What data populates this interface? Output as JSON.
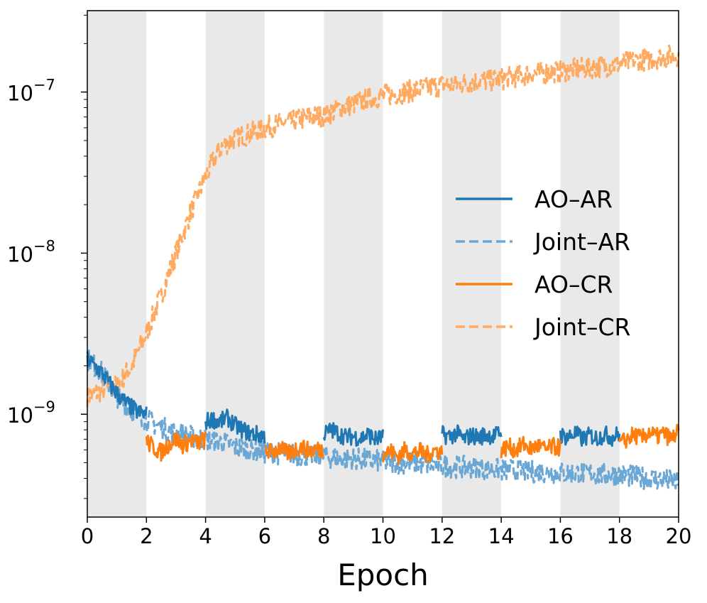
{
  "chart_data": {
    "type": "line",
    "title": "",
    "xlabel": "Epoch",
    "ylabel": "",
    "xlim": [
      0,
      20
    ],
    "ylim": [
      2.3e-10,
      3.2e-07
    ],
    "yscale": "log",
    "xticks": [
      "0",
      "2",
      "4",
      "6",
      "8",
      "10",
      "12",
      "14",
      "16",
      "18",
      "20"
    ],
    "yticks": [
      {
        "value": 1e-09,
        "base": "10",
        "exp": "−9"
      },
      {
        "value": 1e-08,
        "base": "10",
        "exp": "−8"
      },
      {
        "value": 1e-07,
        "base": "10",
        "exp": "−7"
      }
    ],
    "shaded_epoch_ranges": [
      [
        0,
        2
      ],
      [
        4,
        6
      ],
      [
        8,
        10
      ],
      [
        12,
        14
      ],
      [
        16,
        18
      ]
    ],
    "legend_position": "center-right",
    "series": [
      {
        "name": "AO–AR",
        "color": "#1f77b4",
        "style": "solid",
        "active_epoch_ranges": [
          [
            0,
            2
          ],
          [
            4,
            6
          ],
          [
            8,
            10
          ],
          [
            12,
            14
          ],
          [
            16,
            18
          ]
        ],
        "x": [
          0,
          0.25,
          0.5,
          0.75,
          1,
          1.25,
          1.5,
          1.75,
          2,
          4,
          4.25,
          4.5,
          4.75,
          5,
          5.25,
          5.5,
          5.75,
          6,
          8,
          8.25,
          8.5,
          8.75,
          9,
          9.25,
          9.5,
          9.75,
          10,
          12,
          12.25,
          12.5,
          12.75,
          13,
          13.25,
          13.5,
          13.75,
          14,
          16,
          16.25,
          16.5,
          16.75,
          17,
          17.25,
          17.5,
          17.75,
          18
        ],
        "y": [
          2.2e-09,
          2e-09,
          1.8e-09,
          1.55e-09,
          1.35e-09,
          1.2e-09,
          1.1e-09,
          1.02e-09,
          1e-09,
          9e-10,
          9.3e-10,
          9e-10,
          9.5e-10,
          8.5e-10,
          8e-10,
          7.6e-10,
          7.5e-10,
          7.3e-10,
          7.5e-10,
          8e-10,
          7.6e-10,
          7.2e-10,
          7.3e-10,
          7.1e-10,
          7.5e-10,
          7e-10,
          7.2e-10,
          7.5e-10,
          7.3e-10,
          7.6e-10,
          7e-10,
          7.4e-10,
          7.2e-10,
          7.5e-10,
          7.3e-10,
          7.8e-10,
          7.4e-10,
          7.2e-10,
          7.6e-10,
          7e-10,
          7.4e-10,
          7.1e-10,
          7.5e-10,
          7.2e-10,
          7.6e-10
        ]
      },
      {
        "name": "Joint–AR",
        "color": "#6aa7d4",
        "style": "dashed",
        "x": [
          0,
          0.5,
          1,
          1.5,
          2,
          2.5,
          3,
          3.5,
          4,
          4.5,
          5,
          5.5,
          6,
          6.5,
          7,
          7.5,
          8,
          8.5,
          9,
          9.5,
          10,
          10.5,
          11,
          11.5,
          12,
          12.5,
          13,
          13.5,
          14,
          14.5,
          15,
          15.5,
          16,
          16.5,
          17,
          17.5,
          18,
          18.5,
          19,
          19.5,
          20
        ],
        "y": [
          2.2e-09,
          1.8e-09,
          1.3e-09,
          1.05e-09,
          9.2e-10,
          8.3e-10,
          7.6e-10,
          7.3e-10,
          7e-10,
          6.7e-10,
          6.3e-10,
          6e-10,
          5.8e-10,
          5.7e-10,
          5.6e-10,
          5.6e-10,
          5.5e-10,
          5.3e-10,
          5.3e-10,
          5.2e-10,
          5.1e-10,
          5e-10,
          5e-10,
          4.9e-10,
          4.8e-10,
          4.7e-10,
          4.7e-10,
          4.6e-10,
          4.5e-10,
          4.5e-10,
          4.4e-10,
          4.4e-10,
          4.3e-10,
          4.3e-10,
          4.3e-10,
          4.2e-10,
          4.2e-10,
          4.1e-10,
          4e-10,
          3.9e-10,
          3.8e-10
        ]
      },
      {
        "name": "AO–CR",
        "color": "#ff7f0e",
        "style": "solid",
        "active_epoch_ranges": [
          [
            2,
            4
          ],
          [
            6,
            8
          ],
          [
            10,
            12
          ],
          [
            14,
            16
          ],
          [
            18,
            20
          ]
        ],
        "x": [
          2,
          2.25,
          2.5,
          2.75,
          3,
          3.25,
          3.5,
          3.75,
          4,
          6,
          6.25,
          6.5,
          6.75,
          7,
          7.25,
          7.5,
          7.75,
          8,
          10,
          10.25,
          10.5,
          10.75,
          11,
          11.25,
          11.5,
          11.75,
          12,
          14,
          14.25,
          14.5,
          14.75,
          15,
          15.25,
          15.5,
          15.75,
          16,
          18,
          18.25,
          18.5,
          18.75,
          19,
          19.25,
          19.5,
          19.75,
          20
        ],
        "y": [
          6.8e-10,
          6.2e-10,
          5.8e-10,
          6.5e-10,
          7e-10,
          6.4e-10,
          6.9e-10,
          6.6e-10,
          7e-10,
          6e-10,
          5.8e-10,
          6.2e-10,
          5.7e-10,
          6e-10,
          6.3e-10,
          5.9e-10,
          6.1e-10,
          6e-10,
          5.7e-10,
          5.9e-10,
          5.5e-10,
          6e-10,
          5.7e-10,
          5.9e-10,
          5.6e-10,
          6e-10,
          5.8e-10,
          6e-10,
          6.3e-10,
          6e-10,
          6.5e-10,
          6.1e-10,
          6.4e-10,
          6e-10,
          6.3e-10,
          6.2e-10,
          6.5e-10,
          7e-10,
          7.5e-10,
          7e-10,
          7.8e-10,
          7.2e-10,
          7.6e-10,
          7e-10,
          7.8e-10
        ]
      },
      {
        "name": "Joint–CR",
        "color": "#ffaa60",
        "style": "dashed",
        "x": [
          0,
          0.5,
          1,
          1.5,
          2,
          2.5,
          3,
          3.5,
          4,
          4.5,
          5,
          5.5,
          6,
          6.5,
          7,
          7.5,
          8,
          8.5,
          9,
          9.5,
          10,
          10.5,
          11,
          11.5,
          12,
          12.5,
          13,
          13.5,
          14,
          14.5,
          15,
          15.5,
          16,
          16.5,
          17,
          17.5,
          18,
          18.5,
          19,
          19.5,
          20
        ],
        "y": [
          1.3e-09,
          1.4e-09,
          1.5e-09,
          2e-09,
          3.2e-09,
          5.5e-09,
          1e-08,
          1.8e-08,
          3e-08,
          4.5e-08,
          5.2e-08,
          5.5e-08,
          6e-08,
          6.3e-08,
          6.6e-08,
          7e-08,
          7.2e-08,
          7.8e-08,
          8.5e-08,
          9e-08,
          9.5e-08,
          9.8e-08,
          1.02e-07,
          1.07e-07,
          1.1e-07,
          1.12e-07,
          1.15e-07,
          1.18e-07,
          1.2e-07,
          1.25e-07,
          1.3e-07,
          1.32e-07,
          1.35e-07,
          1.38e-07,
          1.42e-07,
          1.45e-07,
          1.5e-07,
          1.55e-07,
          1.6e-07,
          1.65e-07,
          1.7e-07
        ]
      }
    ]
  }
}
